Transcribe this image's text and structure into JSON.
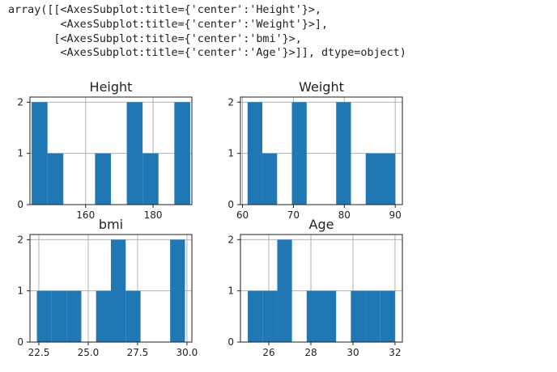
{
  "output": {
    "lines": [
      "array([[<AxesSubplot:title={'center':'Height'}>,",
      "        <AxesSubplot:title={'center':'Weight'}>],",
      "       [<AxesSubplot:title={'center':'bmi'}>,",
      "        <AxesSubplot:title={'center':'Age'}>]], dtype=object)"
    ]
  },
  "colors": {
    "bar": "#1f77b4",
    "grid": "#b0b0b0",
    "axis": "#222222"
  },
  "chart_data": [
    {
      "type": "bar",
      "title": "Height",
      "bin_edges": [
        144,
        148.7,
        153.4,
        158.1,
        162.8,
        167.5,
        172.2,
        176.9,
        181.6,
        186.3,
        191
      ],
      "counts": [
        2,
        1,
        0,
        0,
        1,
        0,
        2,
        1,
        0,
        2
      ],
      "xlim": [
        143.5,
        191.5
      ],
      "ylim": [
        0,
        2.1
      ],
      "xticks": [
        160,
        180
      ],
      "xtick_labels": [
        "160",
        "180"
      ],
      "yticks": [
        0,
        1,
        2
      ],
      "ytick_labels": [
        "0",
        "1",
        "2"
      ],
      "grid": true
    },
    {
      "type": "bar",
      "title": "Weight",
      "bin_edges": [
        61,
        63.9,
        66.8,
        69.7,
        72.6,
        75.5,
        78.4,
        81.3,
        84.2,
        87.1,
        90
      ],
      "counts": [
        2,
        1,
        0,
        2,
        0,
        0,
        2,
        0,
        1,
        1
      ],
      "xlim": [
        59.6,
        91.4
      ],
      "ylim": [
        0,
        2.1
      ],
      "xticks": [
        60,
        70,
        80,
        90
      ],
      "xtick_labels": [
        "60",
        "70",
        "80",
        "90"
      ],
      "yticks": [
        0,
        1,
        2
      ],
      "ytick_labels": [
        "0",
        "1",
        "2"
      ],
      "grid": true
    },
    {
      "type": "bar",
      "title": "bmi",
      "bin_edges": [
        22.4,
        23.15,
        23.9,
        24.65,
        25.4,
        26.15,
        26.9,
        27.65,
        28.4,
        29.15,
        29.9
      ],
      "counts": [
        1,
        1,
        1,
        0,
        1,
        2,
        1,
        0,
        0,
        2
      ],
      "xlim": [
        22.05,
        30.25
      ],
      "ylim": [
        0,
        2.1
      ],
      "xticks": [
        22.5,
        25.0,
        27.5,
        30.0
      ],
      "xtick_labels": [
        "22.5",
        "25.0",
        "27.5",
        "30.0"
      ],
      "yticks": [
        0,
        1,
        2
      ],
      "ytick_labels": [
        "0",
        "1",
        "2"
      ],
      "grid": true
    },
    {
      "type": "bar",
      "title": "Age",
      "bin_edges": [
        25,
        25.7,
        26.4,
        27.1,
        27.8,
        28.5,
        29.2,
        29.9,
        30.6,
        31.3,
        32
      ],
      "counts": [
        1,
        1,
        2,
        0,
        1,
        1,
        0,
        1,
        1,
        1
      ],
      "xlim": [
        24.65,
        32.35
      ],
      "ylim": [
        0,
        2.1
      ],
      "xticks": [
        26,
        28,
        30,
        32
      ],
      "xtick_labels": [
        "26",
        "28",
        "30",
        "32"
      ],
      "yticks": [
        0,
        1,
        2
      ],
      "ytick_labels": [
        "0",
        "1",
        "2"
      ],
      "grid": true
    }
  ]
}
